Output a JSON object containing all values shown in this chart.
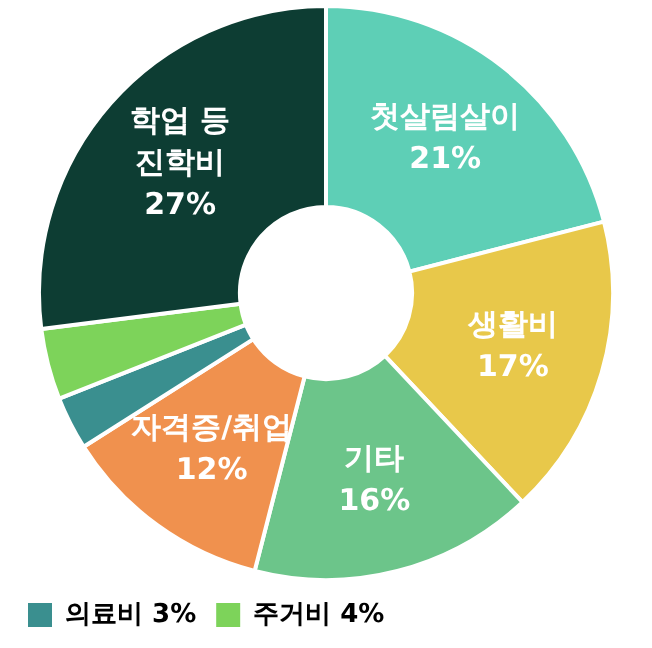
{
  "chart_data": {
    "type": "donut",
    "categories": [
      "첫살림살이",
      "생활비",
      "기타",
      "자격증/취업",
      "의료비",
      "주거비",
      "학업 등 진학비"
    ],
    "values": [
      21,
      17,
      16,
      12,
      3,
      4,
      27
    ],
    "colors": [
      "#5ecfb6",
      "#e8c84a",
      "#6cc58a",
      "#f0914e",
      "#3a8f8f",
      "#7dd35a",
      "#0d3d33"
    ],
    "value_labels": [
      "21%",
      "17%",
      "16%",
      "12%",
      "3%",
      "4%",
      "27%"
    ],
    "legend": "bottom left"
  }
}
